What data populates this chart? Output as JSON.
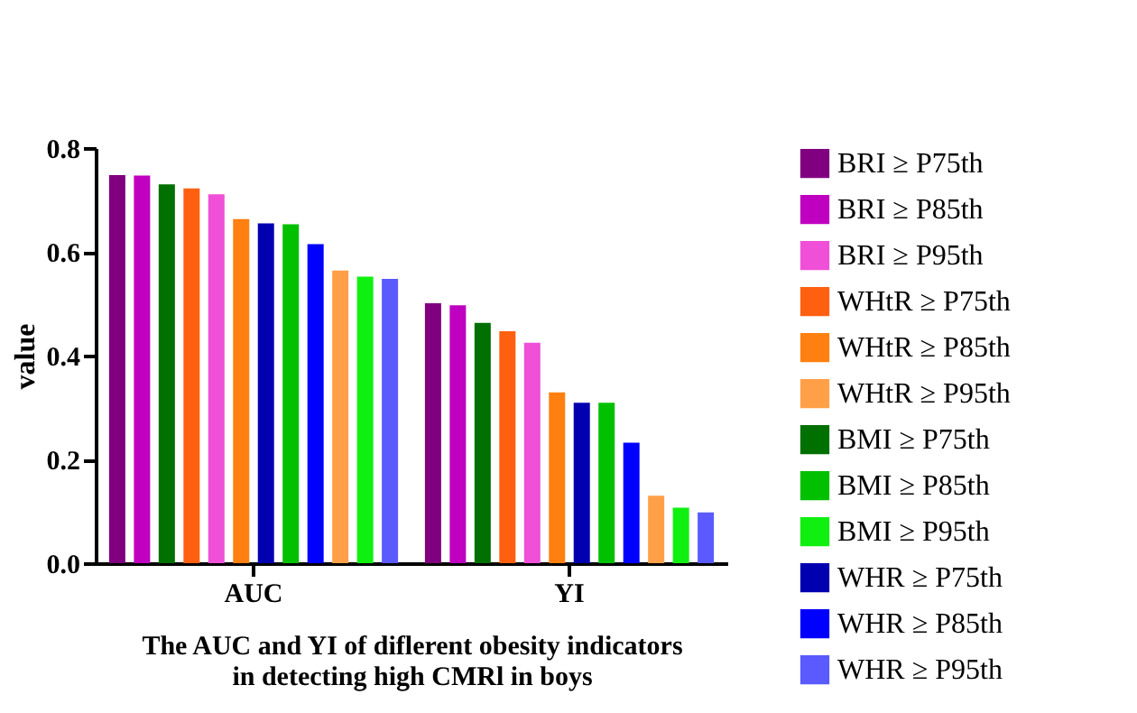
{
  "chart_data": {
    "type": "bar",
    "xlabel": "The AUC and YI of diflerent obesity indicators\nin detecting high CMRl in boys",
    "ylabel": "value",
    "categories": [
      "AUC",
      "YI"
    ],
    "series": [
      {
        "name": "BRI ≥  P75th",
        "color": "#800080",
        "values": [
          0.748,
          0.501
        ]
      },
      {
        "name": "BRI ≥  P85th",
        "color": "#c000c0",
        "values": [
          0.747,
          0.497
        ]
      },
      {
        "name": "BRI ≥  P95th",
        "color": "#f050d8",
        "values": [
          0.711,
          0.425
        ]
      },
      {
        "name": "WHtR ≥  P75th",
        "color": "#ff6010",
        "values": [
          0.722,
          0.447
        ]
      },
      {
        "name": "WHtR ≥  P85th",
        "color": "#ff8010",
        "values": [
          0.663,
          0.329
        ]
      },
      {
        "name": "WHtR ≥  P95th",
        "color": "#ffa048",
        "values": [
          0.564,
          0.13
        ]
      },
      {
        "name": "BMI ≥  P75th",
        "color": "#007000",
        "values": [
          0.73,
          0.463
        ]
      },
      {
        "name": "BMI ≥  P85th",
        "color": "#00c000",
        "values": [
          0.653,
          0.309
        ]
      },
      {
        "name": "BMI ≥  P95th",
        "color": "#10f010",
        "values": [
          0.552,
          0.107
        ]
      },
      {
        "name": "WHR ≥  P75th",
        "color": "#0000b0",
        "values": [
          0.655,
          0.309
        ]
      },
      {
        "name": "WHR ≥  P85th",
        "color": "#0000ff",
        "values": [
          0.615,
          0.232
        ]
      },
      {
        "name": "WHR ≥  P95th",
        "color": "#5a5aff",
        "values": [
          0.548,
          0.098
        ]
      }
    ],
    "ylim": [
      0,
      0.8
    ],
    "yticks": [
      {
        "value": 0,
        "label": "0.0"
      },
      {
        "value": 0.2,
        "label": "0.2"
      },
      {
        "value": 0.4,
        "label": "0.4"
      },
      {
        "value": 0.6,
        "label": "0.6"
      },
      {
        "value": 0.8,
        "label": "0.8"
      }
    ],
    "grid": false,
    "legend": "right"
  }
}
